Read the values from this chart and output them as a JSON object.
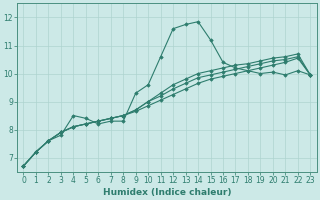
{
  "xlabel": "Humidex (Indice chaleur)",
  "bg_color": "#cce9e7",
  "grid_color": "#aed4d0",
  "line_color": "#2e7d6e",
  "spine_color": "#4a9080",
  "xlim": [
    -0.5,
    23.5
  ],
  "ylim": [
    6.5,
    12.5
  ],
  "yticks": [
    7,
    8,
    9,
    10,
    11,
    12
  ],
  "xticks": [
    0,
    1,
    2,
    3,
    4,
    5,
    6,
    7,
    8,
    9,
    10,
    11,
    12,
    13,
    14,
    15,
    16,
    17,
    18,
    19,
    20,
    21,
    22,
    23
  ],
  "tick_fontsize": 5.5,
  "xlabel_fontsize": 6.5,
  "series": [
    [
      6.7,
      7.2,
      7.6,
      7.8,
      8.5,
      8.4,
      8.2,
      8.3,
      8.3,
      9.3,
      9.6,
      10.6,
      11.6,
      11.75,
      11.85,
      11.2,
      10.4,
      10.2,
      10.1,
      10.0,
      10.05,
      9.95,
      10.1,
      9.95
    ],
    [
      6.7,
      7.2,
      7.6,
      7.9,
      8.1,
      8.2,
      8.3,
      8.4,
      8.5,
      8.7,
      9.0,
      9.3,
      9.6,
      9.8,
      10.0,
      10.1,
      10.2,
      10.3,
      10.35,
      10.45,
      10.55,
      10.6,
      10.7,
      9.95
    ],
    [
      6.7,
      7.2,
      7.6,
      7.9,
      8.1,
      8.2,
      8.3,
      8.4,
      8.5,
      8.7,
      9.0,
      9.2,
      9.45,
      9.65,
      9.85,
      9.95,
      10.05,
      10.15,
      10.25,
      10.35,
      10.45,
      10.5,
      10.6,
      9.95
    ],
    [
      6.7,
      7.2,
      7.6,
      7.9,
      8.1,
      8.2,
      8.3,
      8.4,
      8.5,
      8.65,
      8.85,
      9.05,
      9.25,
      9.45,
      9.65,
      9.8,
      9.9,
      10.0,
      10.1,
      10.2,
      10.3,
      10.4,
      10.55,
      9.95
    ]
  ]
}
